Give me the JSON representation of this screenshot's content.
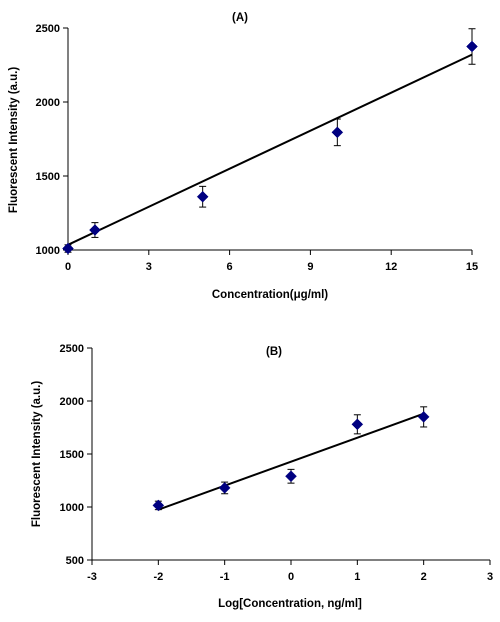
{
  "chart_data": [
    {
      "type": "scatter",
      "title": "(A)",
      "xlabel": "Concentration(μg/ml)",
      "ylabel": "Fluorescent Intensity (a.u.)",
      "xlim": [
        0,
        15
      ],
      "ylim": [
        1000,
        2500
      ],
      "xticks": [
        "0",
        "3",
        "6",
        "9",
        "12",
        "15"
      ],
      "yticks": [
        "1000",
        "1500",
        "2000",
        "2500"
      ],
      "grid": false,
      "marker_color": "#000080",
      "series": [
        {
          "points": [
            {
              "x": 0,
              "y": 1010,
              "err": 25
            },
            {
              "x": 1,
              "y": 1135,
              "err": 50
            },
            {
              "x": 5,
              "y": 1360,
              "err": 70
            },
            {
              "x": 10,
              "y": 1795,
              "err": 90
            },
            {
              "x": 15,
              "y": 2375,
              "err": 120
            }
          ]
        }
      ],
      "trendline": [
        {
          "x": 0,
          "y": 1035
        },
        {
          "x": 15,
          "y": 2320
        }
      ]
    },
    {
      "type": "scatter",
      "title": "(B)",
      "xlabel": "Log[Concentration, ng/ml]",
      "ylabel": "Fluorescent Intensity (a.u.)",
      "xlim": [
        -3,
        3
      ],
      "ylim": [
        500,
        2500
      ],
      "xticks": [
        "-3",
        "-2",
        "-1",
        "0",
        "1",
        "2",
        "3"
      ],
      "yticks": [
        "500",
        "1000",
        "1500",
        "2000",
        "2500"
      ],
      "grid": false,
      "marker_color": "#000080",
      "series": [
        {
          "points": [
            {
              "x": -2,
              "y": 1015,
              "err": 40
            },
            {
              "x": -1,
              "y": 1180,
              "err": 55
            },
            {
              "x": 0,
              "y": 1290,
              "err": 65
            },
            {
              "x": 1,
              "y": 1780,
              "err": 90
            },
            {
              "x": 2,
              "y": 1850,
              "err": 95
            }
          ]
        }
      ],
      "trendline": [
        {
          "x": -2,
          "y": 975
        },
        {
          "x": 2,
          "y": 1880
        }
      ]
    }
  ]
}
